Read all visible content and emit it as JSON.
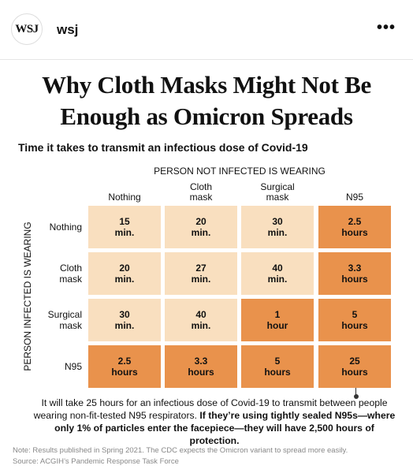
{
  "header": {
    "logo": "WSJ",
    "account": "wsj",
    "menu": "•••"
  },
  "title": "Why Cloth Masks Might Not Be Enough as Omicron Spreads",
  "subtitle": "Time it takes to transmit an infectious dose of Covid-19",
  "table": {
    "column_group": "PERSON NOT INFECTED IS WEARING",
    "row_group": "PERSON INFECTED IS WEARING",
    "columns": [
      "Nothing",
      "Cloth mask",
      "Surgical mask",
      "N95"
    ],
    "rows": [
      {
        "label": "Nothing",
        "cells": [
          {
            "value": "15",
            "unit": "min.",
            "color": "#f9dfbf"
          },
          {
            "value": "20",
            "unit": "min.",
            "color": "#f9dfbf"
          },
          {
            "value": "30",
            "unit": "min.",
            "color": "#f9dfbf"
          },
          {
            "value": "2.5",
            "unit": "hours",
            "color": "#e9924c"
          }
        ]
      },
      {
        "label": "Cloth mask",
        "cells": [
          {
            "value": "20",
            "unit": "min.",
            "color": "#f9dfbf"
          },
          {
            "value": "27",
            "unit": "min.",
            "color": "#f9dfbf"
          },
          {
            "value": "40",
            "unit": "min.",
            "color": "#f9dfbf"
          },
          {
            "value": "3.3",
            "unit": "hours",
            "color": "#e9924c"
          }
        ]
      },
      {
        "label": "Surgical mask",
        "cells": [
          {
            "value": "30",
            "unit": "min.",
            "color": "#f9dfbf"
          },
          {
            "value": "40",
            "unit": "min.",
            "color": "#f9dfbf"
          },
          {
            "value": "1",
            "unit": "hour",
            "color": "#e9924c"
          },
          {
            "value": "5",
            "unit": "hours",
            "color": "#e9924c"
          }
        ]
      },
      {
        "label": "N95",
        "cells": [
          {
            "value": "2.5",
            "unit": "hours",
            "color": "#e9924c"
          },
          {
            "value": "3.3",
            "unit": "hours",
            "color": "#e9924c"
          },
          {
            "value": "5",
            "unit": "hours",
            "color": "#e9924c"
          },
          {
            "value": "25",
            "unit": "hours",
            "color": "#e9924c"
          }
        ]
      }
    ]
  },
  "annotation": {
    "text": "It will take 25 hours for an infectious dose of Covid-19 to transmit between people wearing non-fit-tested N95 respirators.",
    "bold_text": "If they’re using tightly sealed N95s—where only 1% of particles enter the facepiece—they will have 2,500 hours of protection."
  },
  "note": "Note: Results published in Spring 2021. The CDC expects the Omicron variant to spread more easily.",
  "source": "Source: ACGIH’s Pandemic Response Task Force"
}
